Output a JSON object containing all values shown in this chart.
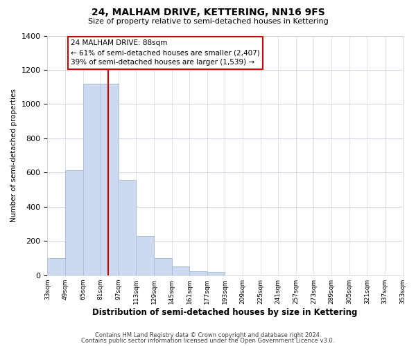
{
  "title": "24, MALHAM DRIVE, KETTERING, NN16 9FS",
  "subtitle": "Size of property relative to semi-detached houses in Kettering",
  "xlabel": "Distribution of semi-detached houses by size in Kettering",
  "ylabel": "Number of semi-detached properties",
  "bar_values": [
    100,
    615,
    1120,
    1120,
    555,
    230,
    100,
    50,
    25,
    20,
    0,
    0,
    0,
    0,
    0,
    0,
    0,
    0,
    0,
    0
  ],
  "bin_edges": [
    33,
    49,
    65,
    81,
    97,
    113,
    129,
    145,
    161,
    177,
    193,
    209,
    225,
    241,
    257,
    273,
    289,
    305,
    321,
    337,
    353
  ],
  "tick_labels": [
    "33sqm",
    "49sqm",
    "65sqm",
    "81sqm",
    "97sqm",
    "113sqm",
    "129sqm",
    "145sqm",
    "161sqm",
    "177sqm",
    "193sqm",
    "209sqm",
    "225sqm",
    "241sqm",
    "257sqm",
    "273sqm",
    "289sqm",
    "305sqm",
    "321sqm",
    "337sqm",
    "353sqm"
  ],
  "bar_color": "#ccd9ee",
  "bar_edge_color": "#a8bedc",
  "vline_x": 88,
  "vline_color": "#cc0000",
  "ylim": [
    0,
    1400
  ],
  "yticks": [
    0,
    200,
    400,
    600,
    800,
    1000,
    1200,
    1400
  ],
  "annotation_title": "24 MALHAM DRIVE: 88sqm",
  "annotation_line1": "← 61% of semi-detached houses are smaller (2,407)",
  "annotation_line2": "39% of semi-detached houses are larger (1,539) →",
  "footer1": "Contains HM Land Registry data © Crown copyright and database right 2024.",
  "footer2": "Contains public sector information licensed under the Open Government Licence v3.0.",
  "background_color": "#ffffff",
  "plot_bg_color": "#ffffff",
  "grid_color": "#d0d8e8"
}
